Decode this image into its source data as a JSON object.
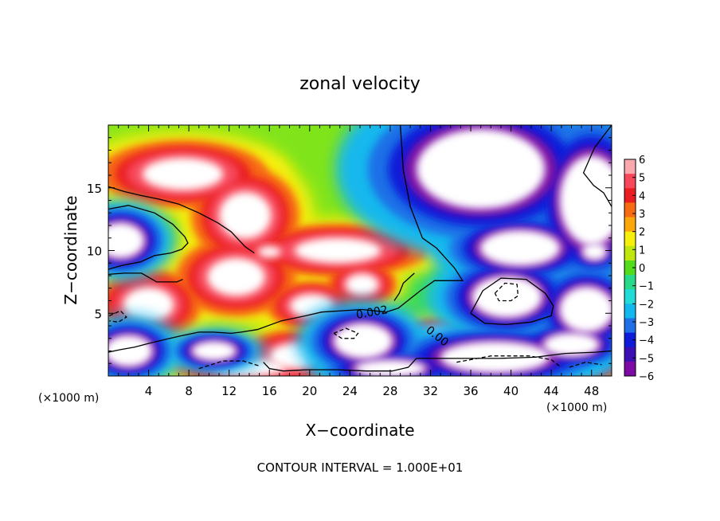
{
  "chart_data": {
    "type": "heatmap",
    "title": "zonal velocity",
    "xlabel": "X−coordinate",
    "ylabel": "Z−coordinate",
    "x_unit_left": "(×1000 m)",
    "x_unit_right": "(×1000 m)",
    "footer": "CONTOUR INTERVAL = 1.000E+01",
    "xlim": [
      0,
      50
    ],
    "ylim": [
      0,
      20
    ],
    "xticks": [
      4,
      8,
      12,
      16,
      20,
      24,
      28,
      32,
      36,
      40,
      44,
      48
    ],
    "yticks": [
      5,
      10,
      15
    ],
    "colorbar": {
      "ticks": [
        6,
        5,
        4,
        3,
        2,
        1,
        0,
        -1,
        -2,
        -3,
        -4,
        -5,
        -6
      ],
      "tick_labels": [
        "6",
        "5",
        "4",
        "3",
        "2",
        "1",
        "0",
        "−1",
        "−2",
        "−3",
        "−4",
        "−5",
        "−6"
      ],
      "colors": [
        "#f9a8ae",
        "#f7485b",
        "#ea1e22",
        "#f76b12",
        "#fba60b",
        "#f6ef0a",
        "#bfe70d",
        "#52dc1d",
        "#29d98a",
        "#22dad6",
        "#13b8ee",
        "#1f6fe7",
        "#0e1cd9",
        "#3b0fb4",
        "#7d0aa4"
      ]
    },
    "contour_labels": [
      "0.002",
      "0.00"
    ],
    "regions": [
      {
        "kind": "high",
        "x": 12.7,
        "y": 7.9,
        "rx": 4.0,
        "ry": 2.1
      },
      {
        "kind": "high",
        "x": 4.0,
        "y": 5.7,
        "rx": 3.5,
        "ry": 1.9
      },
      {
        "kind": "high",
        "x": 25.2,
        "y": 7.3,
        "rx": 2.3,
        "ry": 1.2
      },
      {
        "kind": "high",
        "x": 20.2,
        "y": 5.6,
        "rx": 3.0,
        "ry": 1.3
      },
      {
        "kind": "high",
        "x": 16.0,
        "y": 9.9,
        "rx": 1.6,
        "ry": 0.6
      },
      {
        "kind": "high",
        "x": 13.6,
        "y": 12.8,
        "rx": 3.6,
        "ry": 2.6
      },
      {
        "kind": "high",
        "x": 7.4,
        "y": 16.1,
        "rx": 5.6,
        "ry": 1.8
      },
      {
        "kind": "high",
        "x": 22.8,
        "y": 10.0,
        "rx": 6.0,
        "ry": 1.4
      },
      {
        "kind": "high",
        "x": 14.0,
        "y": 0.7,
        "rx": 5.0,
        "ry": 1.0
      },
      {
        "kind": "high",
        "x": 32.8,
        "y": 3.2,
        "rx": 2.4,
        "ry": 0.9
      },
      {
        "kind": "high",
        "x": 45.4,
        "y": 0.8,
        "rx": 4.5,
        "ry": 0.9
      },
      {
        "kind": "high",
        "x": 18.6,
        "y": 1.6,
        "rx": 3.6,
        "ry": 1.4
      },
      {
        "kind": "low",
        "x": 39.6,
        "y": 6.3,
        "rx": 4.4,
        "ry": 2.1
      },
      {
        "kind": "low",
        "x": 47.5,
        "y": 5.3,
        "rx": 3.4,
        "ry": 2.3
      },
      {
        "kind": "low",
        "x": 25.3,
        "y": 2.8,
        "rx": 3.7,
        "ry": 1.8
      },
      {
        "kind": "low",
        "x": 38.4,
        "y": 1.5,
        "rx": 6.8,
        "ry": 1.6
      },
      {
        "kind": "low",
        "x": 1.2,
        "y": 10.8,
        "rx": 3.0,
        "ry": 1.8
      },
      {
        "kind": "low",
        "x": 40.9,
        "y": 10.2,
        "rx": 5.0,
        "ry": 1.8
      },
      {
        "kind": "low",
        "x": 48.3,
        "y": 9.9,
        "rx": 1.6,
        "ry": 0.9
      },
      {
        "kind": "low",
        "x": 2.0,
        "y": 2.0,
        "rx": 3.0,
        "ry": 1.6
      },
      {
        "kind": "low",
        "x": 10.5,
        "y": 2.0,
        "rx": 2.8,
        "ry": 1.0
      },
      {
        "kind": "low",
        "x": 46.0,
        "y": 2.5,
        "rx": 3.5,
        "ry": 1.2
      },
      {
        "kind": "low",
        "x": 28.0,
        "y": 0.6,
        "rx": 4.5,
        "ry": 0.9
      },
      {
        "kind": "low",
        "x": 37.0,
        "y": 16.5,
        "rx": 8.0,
        "ry": 4.0
      },
      {
        "kind": "low",
        "x": 48.0,
        "y": 14.0,
        "rx": 4.0,
        "ry": 4.5
      }
    ],
    "contours": [
      {
        "style": "solid",
        "points": [
          [
            29.0,
            20.0
          ],
          [
            29.3,
            16.4
          ],
          [
            30.0,
            13.5
          ],
          [
            31.2,
            11.0
          ],
          [
            32.6,
            10.2
          ],
          [
            34.4,
            8.6
          ],
          [
            35.2,
            7.6
          ],
          [
            34.0,
            7.6
          ],
          [
            32.4,
            7.6
          ],
          [
            31.0,
            6.8
          ],
          [
            29.9,
            6.1
          ],
          [
            28.8,
            5.4
          ],
          [
            27.6,
            5.1
          ],
          [
            25.2,
            5.3
          ],
          [
            23.2,
            5.2
          ],
          [
            21.2,
            5.1
          ],
          [
            19.6,
            4.8
          ],
          [
            17.2,
            4.4
          ],
          [
            14.8,
            3.7
          ],
          [
            13.2,
            3.5
          ],
          [
            12.2,
            3.4
          ],
          [
            10.4,
            3.5
          ],
          [
            9.0,
            3.5
          ],
          [
            7.2,
            3.2
          ],
          [
            5.6,
            2.9
          ],
          [
            4.0,
            2.6
          ],
          [
            2.6,
            2.3
          ],
          [
            1.2,
            2.1
          ],
          [
            0.0,
            1.9
          ]
        ]
      },
      {
        "style": "solid",
        "points": [
          [
            0.0,
            13.3
          ],
          [
            2.0,
            13.6
          ],
          [
            4.6,
            13.0
          ],
          [
            6.4,
            12.1
          ],
          [
            7.6,
            11.1
          ],
          [
            7.9,
            10.6
          ],
          [
            7.3,
            10.1
          ],
          [
            6.2,
            9.8
          ],
          [
            4.6,
            9.6
          ],
          [
            3.2,
            9.1
          ],
          [
            1.3,
            8.8
          ],
          [
            0.0,
            8.5
          ]
        ]
      },
      {
        "style": "solid",
        "points": [
          [
            0.0,
            8.1
          ],
          [
            1.6,
            8.2
          ],
          [
            3.3,
            8.2
          ],
          [
            4.8,
            7.5
          ],
          [
            6.8,
            7.5
          ],
          [
            7.4,
            7.7
          ]
        ]
      },
      {
        "style": "solid",
        "points": [
          [
            0.0,
            15.1
          ],
          [
            1.6,
            14.7
          ],
          [
            3.2,
            14.4
          ],
          [
            5.0,
            14.1
          ],
          [
            7.0,
            13.7
          ],
          [
            9.0,
            13.0
          ],
          [
            10.9,
            12.2
          ],
          [
            12.2,
            11.5
          ],
          [
            13.6,
            10.3
          ],
          [
            14.5,
            9.8
          ]
        ]
      },
      {
        "style": "solid",
        "points": [
          [
            30.6,
            1.4
          ],
          [
            34.8,
            1.4
          ],
          [
            38.8,
            1.4
          ],
          [
            42.4,
            1.5
          ],
          [
            45.4,
            1.8
          ],
          [
            48.4,
            1.9
          ],
          [
            50.0,
            2.0
          ]
        ]
      },
      {
        "style": "solid",
        "points": [
          [
            50.0,
            20.0
          ],
          [
            48.3,
            18.2
          ],
          [
            47.2,
            16.2
          ],
          [
            48.2,
            15.2
          ],
          [
            49.2,
            14.6
          ],
          [
            50.0,
            13.5
          ]
        ]
      },
      {
        "style": "solid",
        "points": [
          [
            30.4,
            8.2
          ],
          [
            29.3,
            7.4
          ],
          [
            28.9,
            6.6
          ],
          [
            28.4,
            6.0
          ]
        ]
      },
      {
        "style": "solid",
        "points": [
          [
            36.0,
            5.0
          ],
          [
            37.2,
            6.8
          ],
          [
            39.0,
            7.8
          ],
          [
            41.5,
            7.7
          ],
          [
            43.4,
            6.6
          ],
          [
            44.2,
            5.6
          ],
          [
            44.0,
            4.8
          ],
          [
            42.0,
            4.3
          ],
          [
            39.5,
            4.1
          ],
          [
            37.4,
            4.2
          ],
          [
            36.0,
            5.0
          ]
        ]
      },
      {
        "style": "solid",
        "points": [
          [
            15.4,
            1.1
          ],
          [
            16.0,
            0.6
          ],
          [
            17.4,
            0.4
          ],
          [
            19.8,
            0.5
          ],
          [
            22.8,
            0.5
          ],
          [
            25.6,
            0.4
          ],
          [
            28.2,
            0.4
          ],
          [
            29.8,
            0.7
          ],
          [
            30.6,
            1.4
          ]
        ]
      },
      {
        "style": "dashed",
        "points": [
          [
            38.4,
            6.6
          ],
          [
            39.4,
            7.4
          ],
          [
            40.6,
            7.3
          ],
          [
            40.7,
            6.4
          ],
          [
            40.0,
            6.0
          ],
          [
            38.8,
            6.0
          ],
          [
            38.4,
            6.6
          ]
        ]
      },
      {
        "style": "dashed",
        "points": [
          [
            22.4,
            3.4
          ],
          [
            23.6,
            3.8
          ],
          [
            24.8,
            3.4
          ],
          [
            24.4,
            3.0
          ],
          [
            23.2,
            3.0
          ],
          [
            22.4,
            3.4
          ]
        ]
      },
      {
        "style": "dashed",
        "points": [
          [
            0.1,
            4.8
          ],
          [
            1.2,
            5.2
          ],
          [
            1.8,
            4.7
          ],
          [
            1.0,
            4.3
          ],
          [
            0.1,
            4.4
          ]
        ]
      },
      {
        "style": "dashed",
        "points": [
          [
            34.6,
            1.1
          ],
          [
            38.0,
            1.6
          ],
          [
            41.8,
            1.6
          ],
          [
            44.0,
            1.3
          ],
          [
            44.8,
            0.8
          ]
        ]
      },
      {
        "style": "dashed",
        "points": [
          [
            9.0,
            0.6
          ],
          [
            11.4,
            1.2
          ],
          [
            13.4,
            1.2
          ],
          [
            15.0,
            0.8
          ]
        ]
      },
      {
        "style": "dashed",
        "points": [
          [
            45.8,
            0.7
          ],
          [
            47.4,
            1.1
          ],
          [
            49.0,
            0.9
          ]
        ]
      }
    ]
  }
}
